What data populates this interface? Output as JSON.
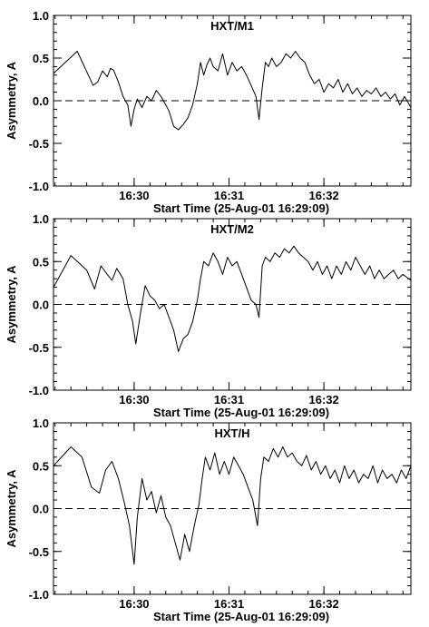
{
  "chart_data": [
    {
      "type": "line",
      "title": "HXT/M1",
      "xlabel": "Start Time (25-Aug-01 16:29:09)",
      "ylabel": "Asymmetry, A",
      "xlim": [
        "16:29:09",
        "16:32:55"
      ],
      "ylim": [
        -1.0,
        1.0
      ],
      "x_ticks": [
        "16:30",
        "16:31",
        "16:32"
      ],
      "y_ticks": [
        "1.0",
        "0.5",
        "0.0",
        "-0.5",
        "-1.0"
      ],
      "reference_line": {
        "y": 0.0,
        "style": "dashed"
      },
      "series": [
        {
          "x": [
            "16:29:09",
            "16:29:24",
            "16:29:31",
            "16:29:34",
            "16:29:37",
            "16:29:40",
            "16:29:43",
            "16:29:45",
            "16:29:47",
            "16:29:50",
            "16:29:53",
            "16:29:56",
            "16:29:58",
            "16:30:00",
            "16:30:02",
            "16:30:05",
            "16:30:08",
            "16:30:11",
            "16:30:14",
            "16:30:17",
            "16:30:20",
            "16:30:22",
            "16:30:25",
            "16:30:28",
            "16:30:31",
            "16:30:34",
            "16:30:37",
            "16:30:40",
            "16:30:42",
            "16:30:44",
            "16:30:46",
            "16:30:48",
            "16:30:50",
            "16:30:53",
            "16:30:56",
            "16:30:59",
            "16:31:02",
            "16:31:05",
            "16:31:08",
            "16:31:11",
            "16:31:14",
            "16:31:17",
            "16:31:19",
            "16:31:21",
            "16:31:23",
            "16:31:25",
            "16:31:27",
            "16:31:30",
            "16:31:33",
            "16:31:36",
            "16:31:39",
            "16:31:42",
            "16:31:45",
            "16:31:48",
            "16:31:51",
            "16:31:54",
            "16:31:57",
            "16:32:00",
            "16:32:03",
            "16:32:06",
            "16:32:09",
            "16:32:12",
            "16:32:15",
            "16:32:18",
            "16:32:21",
            "16:32:24",
            "16:32:27",
            "16:32:30",
            "16:32:33",
            "16:32:36",
            "16:32:39",
            "16:32:42",
            "16:32:45",
            "16:32:48",
            "16:32:51",
            "16:32:55"
          ],
          "values": [
            0.32,
            0.58,
            0.3,
            0.18,
            0.22,
            0.35,
            0.28,
            0.38,
            0.36,
            0.22,
            0.05,
            -0.05,
            -0.3,
            -0.1,
            0.02,
            -0.08,
            0.05,
            0.0,
            0.12,
            0.05,
            -0.05,
            -0.12,
            -0.3,
            -0.34,
            -0.28,
            -0.2,
            -0.05,
            0.2,
            0.45,
            0.3,
            0.42,
            0.5,
            0.4,
            0.35,
            0.55,
            0.3,
            0.45,
            0.35,
            0.4,
            0.3,
            0.18,
            0.05,
            -0.22,
            0.15,
            0.45,
            0.4,
            0.5,
            0.4,
            0.45,
            0.55,
            0.5,
            0.58,
            0.5,
            0.45,
            0.3,
            0.2,
            0.25,
            0.1,
            0.2,
            0.15,
            0.25,
            0.1,
            0.2,
            0.08,
            0.15,
            0.05,
            0.12,
            0.08,
            0.15,
            0.05,
            0.1,
            0.02,
            0.08,
            -0.05,
            0.05,
            -0.08
          ]
        }
      ]
    },
    {
      "type": "line",
      "title": "HXT/M2",
      "xlabel": "Start Time (25-Aug-01 16:29:09)",
      "ylabel": "Asymmetry, A",
      "xlim": [
        "16:29:09",
        "16:32:55"
      ],
      "ylim": [
        -1.0,
        1.0
      ],
      "x_ticks": [
        "16:30",
        "16:31",
        "16:32"
      ],
      "y_ticks": [
        "1.0",
        "0.5",
        "0.0",
        "-0.5",
        "-1.0"
      ],
      "reference_line": {
        "y": 0.0,
        "style": "dashed"
      },
      "series": [
        {
          "x": [
            "16:29:09",
            "16:29:20",
            "16:29:30",
            "16:29:35",
            "16:29:39",
            "16:29:43",
            "16:29:46",
            "16:29:49",
            "16:29:53",
            "16:29:56",
            "16:29:59",
            "16:30:01",
            "16:30:04",
            "16:30:07",
            "16:30:10",
            "16:30:13",
            "16:30:16",
            "16:30:19",
            "16:30:22",
            "16:30:25",
            "16:30:28",
            "16:30:31",
            "16:30:34",
            "16:30:37",
            "16:30:40",
            "16:30:42",
            "16:30:44",
            "16:30:47",
            "16:30:50",
            "16:30:53",
            "16:30:56",
            "16:30:59",
            "16:31:02",
            "16:31:05",
            "16:31:08",
            "16:31:11",
            "16:31:14",
            "16:31:17",
            "16:31:19",
            "16:31:21",
            "16:31:23",
            "16:31:26",
            "16:31:29",
            "16:31:32",
            "16:31:35",
            "16:31:38",
            "16:31:41",
            "16:31:44",
            "16:31:47",
            "16:31:50",
            "16:31:53",
            "16:31:56",
            "16:31:59",
            "16:32:02",
            "16:32:05",
            "16:32:08",
            "16:32:11",
            "16:32:14",
            "16:32:17",
            "16:32:20",
            "16:32:23",
            "16:32:26",
            "16:32:29",
            "16:32:32",
            "16:32:35",
            "16:32:38",
            "16:32:41",
            "16:32:44",
            "16:32:47",
            "16:32:50",
            "16:32:55"
          ],
          "values": [
            0.2,
            0.57,
            0.4,
            0.18,
            0.45,
            0.35,
            0.28,
            0.42,
            0.3,
            0.0,
            -0.2,
            -0.46,
            -0.1,
            0.22,
            0.1,
            0.05,
            -0.05,
            0.0,
            -0.15,
            -0.3,
            -0.55,
            -0.4,
            -0.35,
            -0.2,
            0.05,
            0.3,
            0.5,
            0.45,
            0.6,
            0.5,
            0.35,
            0.55,
            0.45,
            0.5,
            0.35,
            0.2,
            0.05,
            0.0,
            -0.15,
            0.45,
            0.55,
            0.5,
            0.6,
            0.55,
            0.65,
            0.6,
            0.68,
            0.6,
            0.55,
            0.5,
            0.4,
            0.5,
            0.35,
            0.45,
            0.3,
            0.45,
            0.35,
            0.5,
            0.4,
            0.55,
            0.45,
            0.35,
            0.45,
            0.3,
            0.4,
            0.3,
            0.35,
            0.4,
            0.3,
            0.35,
            0.28
          ]
        }
      ]
    },
    {
      "type": "line",
      "title": "HXT/H",
      "xlabel": "Start Time (25-Aug-01 16:29:09)",
      "ylabel": "Asymmetry, A",
      "xlim": [
        "16:29:09",
        "16:32:55"
      ],
      "ylim": [
        -1.0,
        1.0
      ],
      "x_ticks": [
        "16:30",
        "16:31",
        "16:32"
      ],
      "y_ticks": [
        "1.0",
        "0.5",
        "0.0",
        "-0.5",
        "-1.0"
      ],
      "reference_line": {
        "y": 0.0,
        "style": "dashed"
      },
      "series": [
        {
          "x": [
            "16:29:09",
            "16:29:20",
            "16:29:27",
            "16:29:33",
            "16:29:38",
            "16:29:42",
            "16:29:46",
            "16:29:50",
            "16:29:54",
            "16:29:57",
            "16:30:00",
            "16:30:02",
            "16:30:05",
            "16:30:08",
            "16:30:11",
            "16:30:14",
            "16:30:17",
            "16:30:20",
            "16:30:23",
            "16:30:26",
            "16:30:29",
            "16:30:32",
            "16:30:35",
            "16:30:38",
            "16:30:41",
            "16:30:43",
            "16:30:45",
            "16:30:48",
            "16:30:51",
            "16:30:54",
            "16:30:57",
            "16:31:00",
            "16:31:03",
            "16:31:06",
            "16:31:09",
            "16:31:12",
            "16:31:15",
            "16:31:18",
            "16:31:20",
            "16:31:22",
            "16:31:25",
            "16:31:28",
            "16:31:31",
            "16:31:34",
            "16:31:37",
            "16:31:40",
            "16:31:43",
            "16:31:46",
            "16:31:49",
            "16:31:52",
            "16:31:55",
            "16:31:58",
            "16:32:01",
            "16:32:04",
            "16:32:07",
            "16:32:10",
            "16:32:13",
            "16:32:16",
            "16:32:19",
            "16:32:22",
            "16:32:25",
            "16:32:28",
            "16:32:31",
            "16:32:34",
            "16:32:37",
            "16:32:40",
            "16:32:43",
            "16:32:46",
            "16:32:49",
            "16:32:52",
            "16:32:55"
          ],
          "values": [
            0.5,
            0.72,
            0.6,
            0.25,
            0.18,
            0.45,
            0.55,
            0.35,
            0.05,
            -0.2,
            -0.65,
            -0.1,
            0.35,
            0.1,
            0.2,
            -0.05,
            0.15,
            -0.1,
            -0.2,
            -0.4,
            -0.6,
            -0.3,
            -0.5,
            -0.2,
            0.05,
            0.35,
            0.6,
            0.45,
            0.65,
            0.4,
            0.55,
            0.4,
            0.6,
            0.5,
            0.4,
            0.25,
            0.1,
            -0.2,
            0.35,
            0.6,
            0.55,
            0.7,
            0.6,
            0.72,
            0.6,
            0.65,
            0.55,
            0.5,
            0.62,
            0.45,
            0.55,
            0.4,
            0.5,
            0.35,
            0.45,
            0.3,
            0.5,
            0.35,
            0.45,
            0.3,
            0.4,
            0.35,
            0.5,
            0.3,
            0.45,
            0.35,
            0.4,
            0.3,
            0.45,
            0.35,
            0.5
          ]
        }
      ]
    }
  ]
}
